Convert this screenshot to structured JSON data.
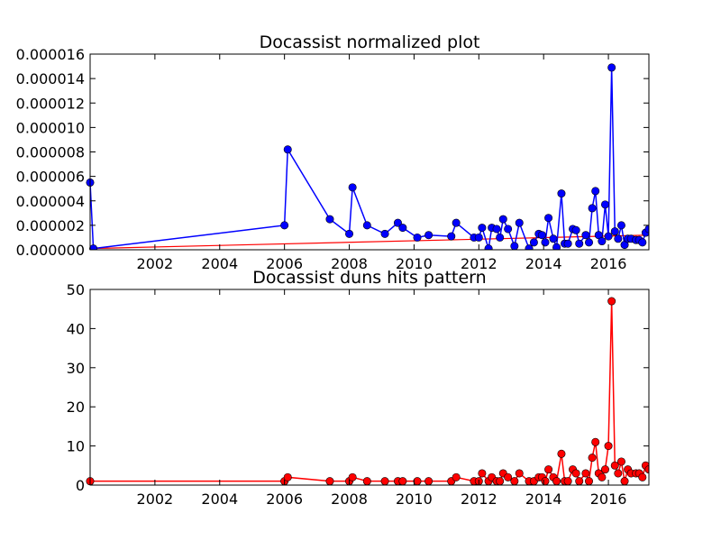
{
  "chart_data": [
    {
      "type": "line",
      "title": "Docassist normalized plot",
      "xlabel": "",
      "ylabel": "",
      "xlim": [
        2000.0,
        2017.25
      ],
      "ylim": [
        0,
        1.6e-05
      ],
      "x_ticks": [
        "2002",
        "2004",
        "2006",
        "2008",
        "2010",
        "2012",
        "2014",
        "2016"
      ],
      "y_ticks": [
        "0.000000",
        "0.000002",
        "0.000004",
        "0.000006",
        "0.000008",
        "0.000010",
        "0.000012",
        "0.000014",
        "0.000016"
      ],
      "grid": false,
      "colors": {
        "series": "#0000ff",
        "trend": "#ff0000"
      },
      "series": [
        {
          "x": [
            2000.0,
            2000.1,
            2006.0,
            2006.1,
            2007.4,
            2008.0,
            2008.1,
            2008.55,
            2009.1,
            2009.5,
            2009.65,
            2010.1,
            2010.45,
            2011.15,
            2011.3,
            2011.85,
            2012.0,
            2012.1,
            2012.3,
            2012.4,
            2012.55,
            2012.65,
            2012.75,
            2012.9,
            2013.1,
            2013.25,
            2013.55,
            2013.7,
            2013.85,
            2013.95,
            2014.05,
            2014.15,
            2014.3,
            2014.4,
            2014.55,
            2014.65,
            2014.75,
            2014.9,
            2015.0,
            2015.1,
            2015.3,
            2015.4,
            2015.5,
            2015.6,
            2015.7,
            2015.8,
            2015.9,
            2016.0,
            2016.1,
            2016.2,
            2016.3,
            2016.4,
            2016.5,
            2016.6,
            2016.7,
            2016.85,
            2016.95,
            2017.05,
            2017.15,
            2017.25
          ],
          "y": [
            5.5e-06,
            1e-07,
            2e-06,
            8.2e-06,
            2.5e-06,
            1.3e-06,
            5.1e-06,
            2e-06,
            1.3e-06,
            2.2e-06,
            1.8e-06,
            1e-06,
            1.2e-06,
            1.1e-06,
            2.2e-06,
            1e-06,
            1e-06,
            1.8e-06,
            1e-07,
            1.8e-06,
            1.7e-06,
            1e-06,
            2.5e-06,
            1.7e-06,
            3e-07,
            2.2e-06,
            1e-07,
            6e-07,
            1.3e-06,
            1.2e-06,
            6e-07,
            2.6e-06,
            9e-07,
            2e-07,
            4.6e-06,
            5e-07,
            5e-07,
            1.7e-06,
            1.6e-06,
            5e-07,
            1.2e-06,
            6e-07,
            3.4e-06,
            4.8e-06,
            1.2e-06,
            7e-07,
            3.7e-06,
            1.1e-06,
            1.49e-05,
            1.5e-06,
            9e-07,
            2e-06,
            4e-07,
            9e-07,
            9e-07,
            8e-07,
            8e-07,
            6e-07,
            1.4e-06,
            1.7e-06
          ]
        }
      ],
      "trend": {
        "x": [
          2000.0,
          2017.25
        ],
        "y": [
          1e-07,
          1.2e-06
        ]
      }
    },
    {
      "type": "line",
      "title": "Docassist duns hits pattern",
      "xlabel": "",
      "ylabel": "",
      "xlim": [
        2000.0,
        2017.25
      ],
      "ylim": [
        0,
        50
      ],
      "x_ticks": [
        "2002",
        "2004",
        "2006",
        "2008",
        "2010",
        "2012",
        "2014",
        "2016"
      ],
      "y_ticks": [
        "0",
        "10",
        "20",
        "30",
        "40",
        "50"
      ],
      "grid": false,
      "colors": {
        "series": "#ff0000"
      },
      "series": [
        {
          "x": [
            2000.0,
            2006.0,
            2006.1,
            2007.4,
            2008.0,
            2008.1,
            2008.55,
            2009.1,
            2009.5,
            2009.65,
            2010.1,
            2010.45,
            2011.15,
            2011.3,
            2011.85,
            2012.0,
            2012.1,
            2012.3,
            2012.4,
            2012.55,
            2012.65,
            2012.75,
            2012.9,
            2013.1,
            2013.25,
            2013.55,
            2013.7,
            2013.85,
            2013.95,
            2014.05,
            2014.15,
            2014.3,
            2014.4,
            2014.55,
            2014.65,
            2014.75,
            2014.9,
            2015.0,
            2015.1,
            2015.3,
            2015.4,
            2015.5,
            2015.6,
            2015.7,
            2015.8,
            2015.9,
            2016.0,
            2016.1,
            2016.2,
            2016.3,
            2016.4,
            2016.5,
            2016.6,
            2016.7,
            2016.85,
            2016.95,
            2017.05,
            2017.15,
            2017.25
          ],
          "y": [
            1,
            1,
            2,
            1,
            1,
            2,
            1,
            1,
            1,
            1,
            1,
            1,
            1,
            2,
            1,
            1,
            3,
            1,
            2,
            1,
            1,
            3,
            2,
            1,
            3,
            1,
            1,
            2,
            2,
            1,
            4,
            2,
            1,
            8,
            1,
            1,
            4,
            3,
            1,
            3,
            1,
            7,
            11,
            3,
            2,
            4,
            10,
            47,
            5,
            3,
            6,
            1,
            4,
            3,
            3,
            3,
            2,
            5,
            4
          ]
        }
      ]
    }
  ]
}
